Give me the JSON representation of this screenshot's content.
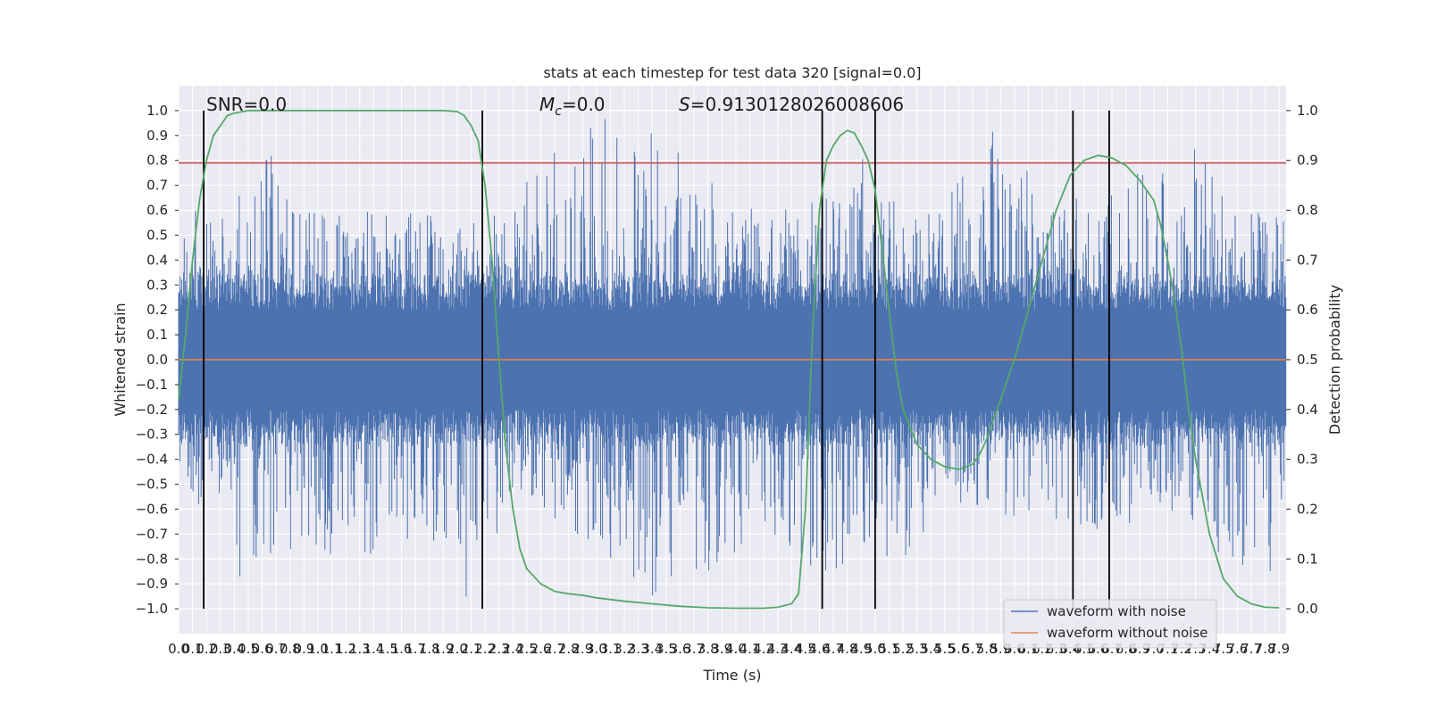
{
  "chart_data": {
    "type": "line",
    "title": "stats at each timestep for test data 320 [signal=0.0]",
    "xlabel": "Time (s)",
    "ylabel": "Whitened strain",
    "y2label": "Detection probability",
    "xlim": [
      0.0,
      7.95
    ],
    "ylim": [
      -1.1,
      1.1
    ],
    "y2lim": [
      -0.05,
      1.05
    ],
    "x_ticks": [
      "0.0",
      "0.1",
      "0.2",
      "0.3",
      "0.4",
      "0.5",
      "0.6",
      "0.7",
      "0.8",
      "0.9",
      "1.0",
      "1.1",
      "1.2",
      "1.3",
      "1.4",
      "1.5",
      "1.6",
      "1.7",
      "1.8",
      "1.9",
      "2.0",
      "2.1",
      "2.2",
      "2.3",
      "2.4",
      "2.5",
      "2.6",
      "2.7",
      "2.8",
      "2.9",
      "3.0",
      "3.1",
      "3.2",
      "3.3",
      "3.4",
      "3.5",
      "3.6",
      "3.7",
      "3.8",
      "3.9",
      "4.0",
      "4.1",
      "4.2",
      "4.3",
      "4.4",
      "4.5",
      "4.6",
      "4.7",
      "4.8",
      "4.9",
      "5.0",
      "5.1",
      "5.2",
      "5.3",
      "5.4",
      "5.5",
      "5.6",
      "5.7",
      "5.8",
      "5.9",
      "6.0",
      "6.1",
      "6.2",
      "6.3",
      "6.4",
      "6.5",
      "6.6",
      "6.7",
      "6.8",
      "6.9",
      "7.0",
      "7.1",
      "7.2",
      "7.3",
      "7.4",
      "7.5",
      "7.6",
      "7.7",
      "7.8",
      "7.9"
    ],
    "y_ticks": [
      "1.0",
      "0.9",
      "0.8",
      "0.7",
      "0.6",
      "0.5",
      "0.4",
      "0.3",
      "0.2",
      "0.1",
      "0.0",
      "-0.1",
      "-0.2",
      "-0.3",
      "-0.4",
      "-0.5",
      "-0.6",
      "-0.7",
      "-0.8",
      "-0.9",
      "-1.0"
    ],
    "y2_ticks": [
      "1.0",
      "0.9",
      "0.8",
      "0.7",
      "0.6",
      "0.5",
      "0.4",
      "0.3",
      "0.2",
      "0.1",
      "0.0"
    ],
    "grid": true,
    "legend_position": "lower-right",
    "annotations": {
      "snr": "SNR=0.0",
      "mc": "=0.0",
      "mc_symbol": "M",
      "mc_sub": "c",
      "s": "=0.9130128026008606",
      "s_symbol": "S"
    },
    "series": [
      {
        "name": "waveform with noise",
        "color": "#4c72b0",
        "noise_envelope_positive": [
          [
            0.0,
            0.45
          ],
          [
            0.1,
            0.6
          ],
          [
            0.2,
            0.75
          ],
          [
            0.3,
            0.62
          ],
          [
            0.45,
            0.68
          ],
          [
            0.6,
            0.8
          ],
          [
            0.7,
            0.86
          ],
          [
            0.9,
            0.6
          ],
          [
            1.2,
            0.62
          ],
          [
            1.5,
            0.6
          ],
          [
            1.8,
            0.58
          ],
          [
            2.1,
            0.55
          ],
          [
            2.4,
            0.6
          ],
          [
            2.6,
            0.83
          ],
          [
            3.1,
            0.99
          ],
          [
            3.5,
            0.88
          ],
          [
            4.0,
            0.62
          ],
          [
            4.5,
            0.6
          ],
          [
            4.8,
            0.9
          ],
          [
            5.2,
            0.6
          ],
          [
            5.5,
            0.62
          ],
          [
            5.8,
            0.95
          ],
          [
            6.3,
            0.65
          ],
          [
            6.6,
            0.7
          ],
          [
            7.0,
            0.78
          ],
          [
            7.3,
            0.86
          ],
          [
            7.6,
            0.6
          ],
          [
            7.9,
            0.58
          ]
        ],
        "noise_envelope_negative": [
          [
            0.0,
            -0.45
          ],
          [
            0.1,
            -0.65
          ],
          [
            0.3,
            -0.6
          ],
          [
            0.45,
            -0.94
          ],
          [
            0.8,
            -0.77
          ],
          [
            1.2,
            -0.8
          ],
          [
            1.9,
            -0.76
          ],
          [
            2.05,
            -0.98
          ],
          [
            2.4,
            -0.62
          ],
          [
            2.8,
            -0.68
          ],
          [
            3.5,
            -0.99
          ],
          [
            3.7,
            -0.91
          ],
          [
            4.2,
            -0.7
          ],
          [
            4.55,
            -0.94
          ],
          [
            4.9,
            -0.75
          ],
          [
            5.2,
            -0.82
          ],
          [
            5.6,
            -0.6
          ],
          [
            6.2,
            -0.64
          ],
          [
            6.5,
            -0.7
          ],
          [
            7.1,
            -0.62
          ],
          [
            7.45,
            -0.8
          ],
          [
            7.9,
            -0.9
          ]
        ]
      },
      {
        "name": "waveform without noise",
        "color": "#dd8452",
        "x": [
          0.0,
          7.95
        ],
        "y": [
          0.0,
          0.0
        ]
      },
      {
        "axis": "y2",
        "color": "#55a868",
        "x": [
          0.0,
          0.05,
          0.1,
          0.15,
          0.2,
          0.25,
          0.3,
          0.35,
          0.4,
          0.5,
          0.6,
          0.8,
          1.0,
          1.5,
          1.9,
          2.0,
          2.05,
          2.1,
          2.15,
          2.2,
          2.25,
          2.3,
          2.35,
          2.4,
          2.45,
          2.5,
          2.6,
          2.7,
          2.8,
          2.9,
          3.0,
          3.2,
          3.4,
          3.6,
          3.8,
          4.0,
          4.2,
          4.3,
          4.4,
          4.45,
          4.5,
          4.55,
          4.6,
          4.65,
          4.7,
          4.75,
          4.8,
          4.85,
          4.9,
          4.95,
          5.0,
          5.05,
          5.1,
          5.15,
          5.2,
          5.3,
          5.4,
          5.5,
          5.6,
          5.7,
          5.75,
          5.8,
          5.9,
          6.0,
          6.1,
          6.2,
          6.3,
          6.4,
          6.5,
          6.6,
          6.7,
          6.8,
          6.9,
          7.0,
          7.05,
          7.1,
          7.15,
          7.2,
          7.25,
          7.3,
          7.4,
          7.5,
          7.6,
          7.7,
          7.8,
          7.9
        ],
        "y": [
          0.42,
          0.55,
          0.7,
          0.82,
          0.9,
          0.95,
          0.97,
          0.99,
          0.995,
          1.0,
          1.0,
          1.0,
          1.0,
          1.0,
          1.0,
          0.998,
          0.99,
          0.97,
          0.94,
          0.85,
          0.7,
          0.5,
          0.32,
          0.2,
          0.12,
          0.08,
          0.05,
          0.035,
          0.03,
          0.027,
          0.022,
          0.015,
          0.01,
          0.005,
          0.002,
          0.001,
          0.001,
          0.003,
          0.01,
          0.03,
          0.2,
          0.55,
          0.8,
          0.9,
          0.93,
          0.95,
          0.96,
          0.955,
          0.93,
          0.9,
          0.84,
          0.72,
          0.6,
          0.48,
          0.4,
          0.33,
          0.3,
          0.285,
          0.28,
          0.29,
          0.31,
          0.34,
          0.42,
          0.5,
          0.6,
          0.7,
          0.8,
          0.87,
          0.9,
          0.91,
          0.905,
          0.89,
          0.86,
          0.82,
          0.77,
          0.7,
          0.62,
          0.52,
          0.4,
          0.3,
          0.15,
          0.06,
          0.025,
          0.01,
          0.003,
          0.002
        ]
      }
    ],
    "hlines": [
      {
        "y": 0.79,
        "color": "#c44e52"
      }
    ],
    "vlines": [
      {
        "x": 0.18,
        "ymin": -1.0,
        "ymax": 1.0
      },
      {
        "x": 2.18,
        "ymin": -1.0,
        "ymax": 1.0
      },
      {
        "x": 4.62,
        "ymin": -1.0,
        "ymax": 1.0
      },
      {
        "x": 5.0,
        "ymin": -1.0,
        "ymax": 1.0
      },
      {
        "x": 6.42,
        "ymin": -1.0,
        "ymax": 1.0
      },
      {
        "x": 6.68,
        "ymin": -1.0,
        "ymax": 1.0
      }
    ]
  }
}
